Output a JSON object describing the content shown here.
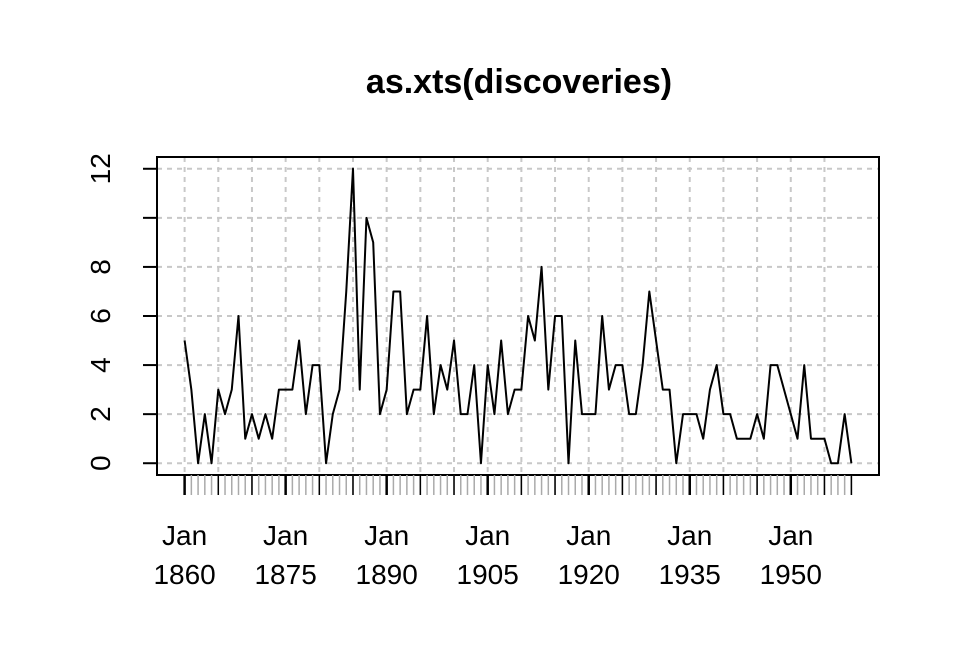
{
  "chart_data": {
    "type": "line",
    "title": "as.xts(discoveries)",
    "xlabel": "",
    "ylabel": "",
    "x": [
      1860,
      1861,
      1862,
      1863,
      1864,
      1865,
      1866,
      1867,
      1868,
      1869,
      1870,
      1871,
      1872,
      1873,
      1874,
      1875,
      1876,
      1877,
      1878,
      1879,
      1880,
      1881,
      1882,
      1883,
      1884,
      1885,
      1886,
      1887,
      1888,
      1889,
      1890,
      1891,
      1892,
      1893,
      1894,
      1895,
      1896,
      1897,
      1898,
      1899,
      1900,
      1901,
      1902,
      1903,
      1904,
      1905,
      1906,
      1907,
      1908,
      1909,
      1910,
      1911,
      1912,
      1913,
      1914,
      1915,
      1916,
      1917,
      1918,
      1919,
      1920,
      1921,
      1922,
      1923,
      1924,
      1925,
      1926,
      1927,
      1928,
      1929,
      1930,
      1931,
      1932,
      1933,
      1934,
      1935,
      1936,
      1937,
      1938,
      1939,
      1940,
      1941,
      1942,
      1943,
      1944,
      1945,
      1946,
      1947,
      1948,
      1949,
      1950,
      1951,
      1952,
      1953,
      1954,
      1955,
      1956,
      1957,
      1958,
      1959
    ],
    "series": [
      {
        "values": [
          5,
          3,
          0,
          2,
          0,
          3,
          2,
          3,
          6,
          1,
          2,
          1,
          2,
          1,
          3,
          3,
          3,
          5,
          2,
          4,
          4,
          0,
          2,
          3,
          7,
          12,
          3,
          10,
          9,
          2,
          3,
          7,
          7,
          2,
          3,
          3,
          6,
          2,
          4,
          3,
          5,
          2,
          2,
          4,
          0,
          4,
          2,
          5,
          2,
          3,
          3,
          6,
          5,
          8,
          3,
          6,
          6,
          0,
          5,
          2,
          2,
          2,
          6,
          3,
          4,
          4,
          2,
          2,
          4,
          7,
          5,
          3,
          3,
          0,
          2,
          2,
          2,
          1,
          3,
          4,
          2,
          2,
          1,
          1,
          1,
          2,
          1,
          4,
          4,
          3,
          2,
          1,
          4,
          1,
          1,
          1,
          0,
          0,
          2,
          0
        ]
      }
    ],
    "xlim": [
      1855.9,
      1963.1
    ],
    "ylim": [
      -0.48,
      12.48
    ],
    "y_ticks": [
      0,
      2,
      4,
      6,
      8,
      10,
      12
    ],
    "y_tick_labels": [
      "0",
      "2",
      "4",
      "6",
      "8",
      "",
      "12"
    ],
    "x_major_ticks": [
      1860,
      1875,
      1890,
      1905,
      1920,
      1935,
      1950
    ],
    "x_major_labels": [
      "Jan\n1860",
      "Jan\n1875",
      "Jan\n1890",
      "Jan\n1905",
      "Jan\n1920",
      "Jan\n1935",
      "Jan\n1950"
    ],
    "x_grid": [
      1860,
      1865,
      1870,
      1875,
      1880,
      1885,
      1890,
      1895,
      1900,
      1905,
      1910,
      1915,
      1920,
      1925,
      1930,
      1935,
      1940,
      1945,
      1950,
      1955
    ],
    "x_mid_ticks": [
      1865,
      1870,
      1880,
      1885,
      1895,
      1900,
      1910,
      1915,
      1925,
      1930,
      1940,
      1945,
      1955,
      1959
    ],
    "grid": true,
    "legend": "none",
    "colors": {
      "line": "#000000",
      "grid": "#c8c8c8",
      "axis": "#000000",
      "minor_tick": "#aaaaaa"
    }
  }
}
